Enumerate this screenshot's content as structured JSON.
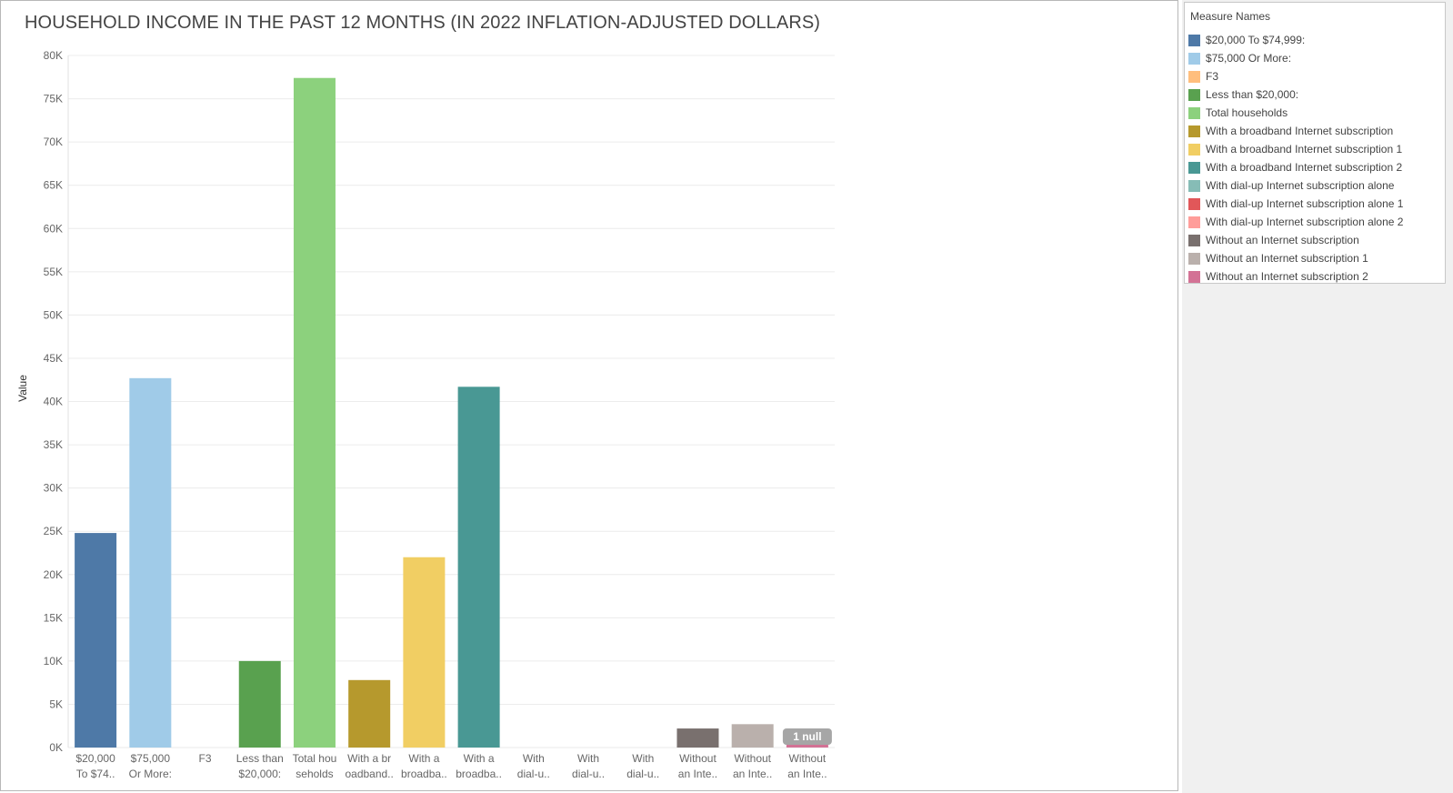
{
  "chart_data": {
    "type": "bar",
    "title": "HOUSEHOLD INCOME IN THE PAST 12 MONTHS (IN 2022 INFLATION-ADJUSTED DOLLARS)",
    "xlabel": "",
    "ylabel": "Value",
    "ylim": [
      0,
      80000
    ],
    "yticks": [
      "0K",
      "5K",
      "10K",
      "15K",
      "20K",
      "25K",
      "30K",
      "35K",
      "40K",
      "45K",
      "50K",
      "55K",
      "60K",
      "65K",
      "70K",
      "75K",
      "80K"
    ],
    "grid": true,
    "legend_position": "right",
    "legend_title": "Measure Names",
    "null_indicator": "1 null",
    "categories": [
      {
        "name": "$20,000 To $74,999:",
        "tick": [
          "$20,000",
          "To $74.."
        ],
        "value": 24800,
        "color": "#4e79a7"
      },
      {
        "name": "$75,000 Or More:",
        "tick": [
          "$75,000",
          "Or More:"
        ],
        "value": 42700,
        "color": "#a0cbe8"
      },
      {
        "name": "F3",
        "tick": [
          "F3",
          ""
        ],
        "value": null,
        "color": "#ffbe7d"
      },
      {
        "name": "Less than $20,000:",
        "tick": [
          "Less than",
          "$20,000:"
        ],
        "value": 10000,
        "color": "#59a14f"
      },
      {
        "name": "Total households",
        "tick": [
          "Total hou",
          "seholds"
        ],
        "value": 77400,
        "color": "#8cd17d"
      },
      {
        "name": "With a broadband Internet subscription",
        "tick": [
          "With a br",
          "oadband.."
        ],
        "value": 7800,
        "color": "#b6992d"
      },
      {
        "name": "With a broadband Internet subscription 1",
        "tick": [
          "With a",
          "broadba.."
        ],
        "value": 22000,
        "color": "#f1ce63"
      },
      {
        "name": "With a broadband Internet subscription 2",
        "tick": [
          "With a",
          "broadba.."
        ],
        "value": 41700,
        "color": "#499894"
      },
      {
        "name": "With dial-up Internet subscription alone",
        "tick": [
          "With",
          "dial-u.."
        ],
        "value": 0,
        "color": "#86bcb6"
      },
      {
        "name": "With dial-up Internet subscription alone 1",
        "tick": [
          "With",
          "dial-u.."
        ],
        "value": 0,
        "color": "#e15759"
      },
      {
        "name": "With dial-up Internet subscription alone 2",
        "tick": [
          "With",
          "dial-u.."
        ],
        "value": 0,
        "color": "#ff9d9a"
      },
      {
        "name": "Without an Internet subscription",
        "tick": [
          "Without",
          "an Inte.."
        ],
        "value": 2200,
        "color": "#79706e"
      },
      {
        "name": "Without an Internet subscription 1",
        "tick": [
          "Without",
          "an Inte.."
        ],
        "value": 2700,
        "color": "#bab0ac"
      },
      {
        "name": "Without an Internet subscription 2",
        "tick": [
          "Without",
          "an Inte.."
        ],
        "value": 800,
        "color": "#d37295"
      }
    ]
  }
}
